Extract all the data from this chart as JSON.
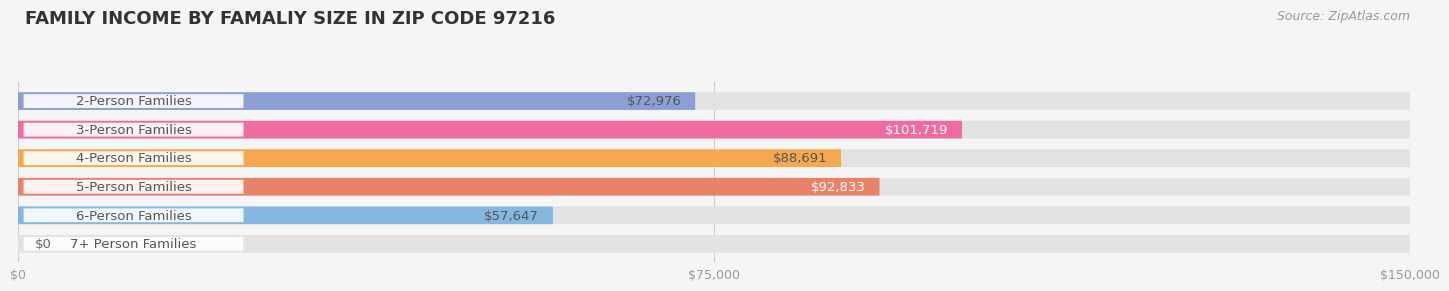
{
  "title": "FAMILY INCOME BY FAMALIY SIZE IN ZIP CODE 97216",
  "source": "Source: ZipAtlas.com",
  "categories": [
    "2-Person Families",
    "3-Person Families",
    "4-Person Families",
    "5-Person Families",
    "6-Person Families",
    "7+ Person Families"
  ],
  "values": [
    72976,
    101719,
    88691,
    92833,
    57647,
    0
  ],
  "bar_colors": [
    "#8B9FD4",
    "#F06CA0",
    "#F5A94E",
    "#E8836A",
    "#85B7E0",
    "#C9A8D4"
  ],
  "label_colors": [
    "#555555",
    "#ffffff",
    "#555555",
    "#ffffff",
    "#555555",
    "#555555"
  ],
  "xlim": [
    0,
    150000
  ],
  "xtick_labels": [
    "$0",
    "$75,000",
    "$150,000"
  ],
  "xtick_values": [
    0,
    75000,
    150000
  ],
  "bar_height": 0.62,
  "bg_color": "#f5f5f5",
  "bar_bg_color": "#e2e2e2",
  "title_fontsize": 13,
  "label_fontsize": 9.5,
  "value_fontsize": 9.5,
  "source_fontsize": 9
}
